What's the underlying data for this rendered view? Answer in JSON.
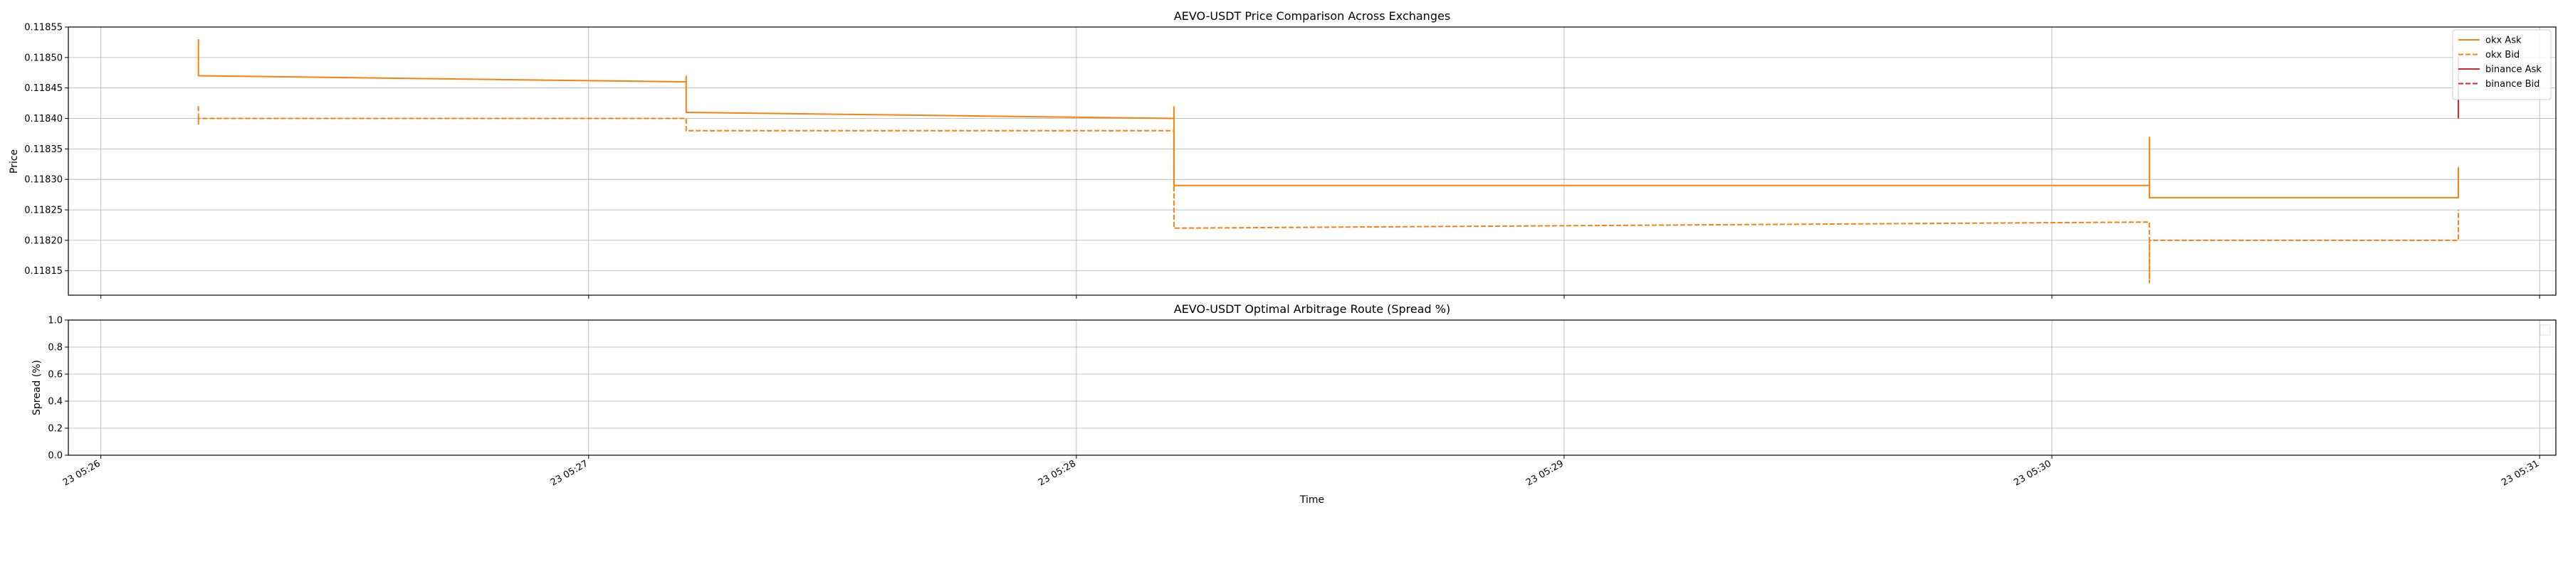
{
  "chart_data": [
    {
      "type": "line",
      "title": "AEVO-USDT Price Comparison Across Exchanges",
      "xlabel": "",
      "ylabel": "Price",
      "ylim": [
        0.11811,
        0.11855
      ],
      "xlim": [
        "05:25:56",
        "05:31:02"
      ],
      "yticks": [
        "0.11815",
        "0.11820",
        "0.11825",
        "0.11830",
        "0.11835",
        "0.11840",
        "0.11845",
        "0.11850",
        "0.11855"
      ],
      "grid": true,
      "legend_placement": "upper right",
      "series": [
        {
          "name": "okx Ask",
          "color": "#ff7f0e",
          "dash": "solid",
          "points": [
            [
              "05:26:12",
              0.11853
            ],
            [
              "05:26:12",
              0.11847
            ],
            [
              "05:27:12",
              0.11846
            ],
            [
              "05:27:12",
              0.11847
            ],
            [
              "05:27:12",
              0.11841
            ],
            [
              "05:28:12",
              0.1184
            ],
            [
              "05:28:12",
              0.11842
            ],
            [
              "05:28:12",
              0.11829
            ],
            [
              "05:30:12",
              0.11829
            ],
            [
              "05:30:12",
              0.11837
            ],
            [
              "05:30:12",
              0.11827
            ],
            [
              "05:30:50",
              0.11827
            ],
            [
              "05:30:50",
              0.11832
            ]
          ]
        },
        {
          "name": "okx Bid",
          "color": "#ff7f0e",
          "dash": "dashed",
          "points": [
            [
              "05:26:12",
              0.11842
            ],
            [
              "05:26:12",
              0.11839
            ],
            [
              "05:26:12",
              0.1184
            ],
            [
              "05:27:12",
              0.1184
            ],
            [
              "05:27:12",
              0.11838
            ],
            [
              "05:28:12",
              0.11838
            ],
            [
              "05:28:12",
              0.11822
            ],
            [
              "05:30:12",
              0.11823
            ],
            [
              "05:30:12",
              0.11813
            ],
            [
              "05:30:12",
              0.1182
            ],
            [
              "05:30:50",
              0.1182
            ],
            [
              "05:30:50",
              0.11825
            ]
          ]
        },
        {
          "name": "binance Ask",
          "color": "#d62728",
          "dash": "solid",
          "points": [
            [
              "05:30:50",
              0.1185
            ],
            [
              "05:30:50",
              0.1184
            ]
          ]
        },
        {
          "name": "binance Bid",
          "color": "#d62728",
          "dash": "dashed",
          "points": []
        }
      ]
    },
    {
      "type": "line",
      "title": "AEVO-USDT Optimal Arbitrage Route (Spread %)",
      "xlabel": "Time",
      "ylabel": "Spread (%)",
      "ylim": [
        0.0,
        1.0
      ],
      "yticks": [
        "0.0",
        "0.2",
        "0.4",
        "0.6",
        "0.8",
        "1.0"
      ],
      "xticks": [
        "23 05:26",
        "23 05:27",
        "23 05:28",
        "23 05:29",
        "23 05:30",
        "23 05:31"
      ],
      "grid": true,
      "legend_placement": "upper right",
      "series": []
    }
  ]
}
